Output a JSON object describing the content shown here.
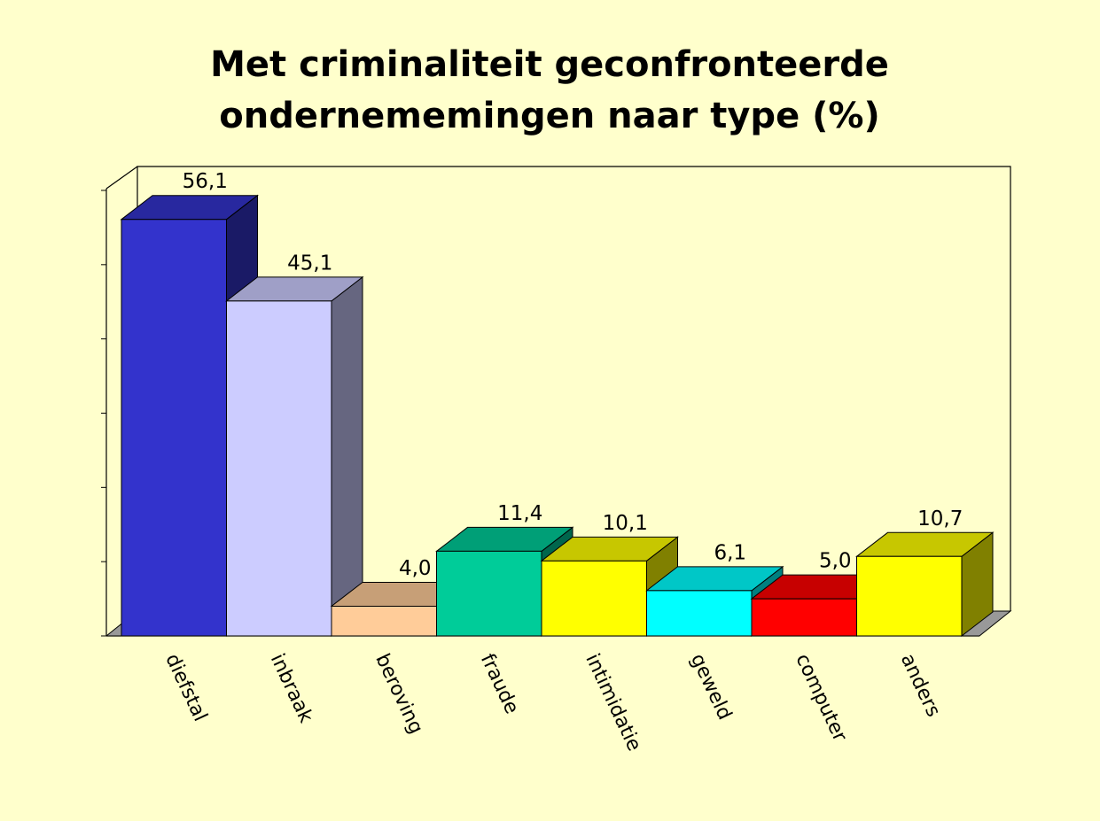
{
  "chart_data": {
    "type": "bar3d",
    "title": [
      "Met criminaliteit geconfronteerde",
      "ondernememingen naar type (%)"
    ],
    "categories": [
      "diefstal",
      "inbraak",
      "beroving",
      "fraude",
      "intimidatie",
      "geweld",
      "computer",
      "anders"
    ],
    "values": [
      56.1,
      45.1,
      4.0,
      11.4,
      10.1,
      6.1,
      5.0,
      10.7
    ],
    "value_labels": [
      "56,1",
      "45,1",
      "4,0",
      "11,4",
      "10,1",
      "6,1",
      "5,0",
      "10,7"
    ],
    "colors": [
      "#3333cc",
      "#ccccff",
      "#ffcc99",
      "#00cc99",
      "#ffff00",
      "#00ffff",
      "#ff0000",
      "#ffff00"
    ],
    "ylim": [
      0,
      60
    ],
    "yticks": [
      0,
      10,
      20,
      30,
      40,
      50,
      60
    ]
  }
}
